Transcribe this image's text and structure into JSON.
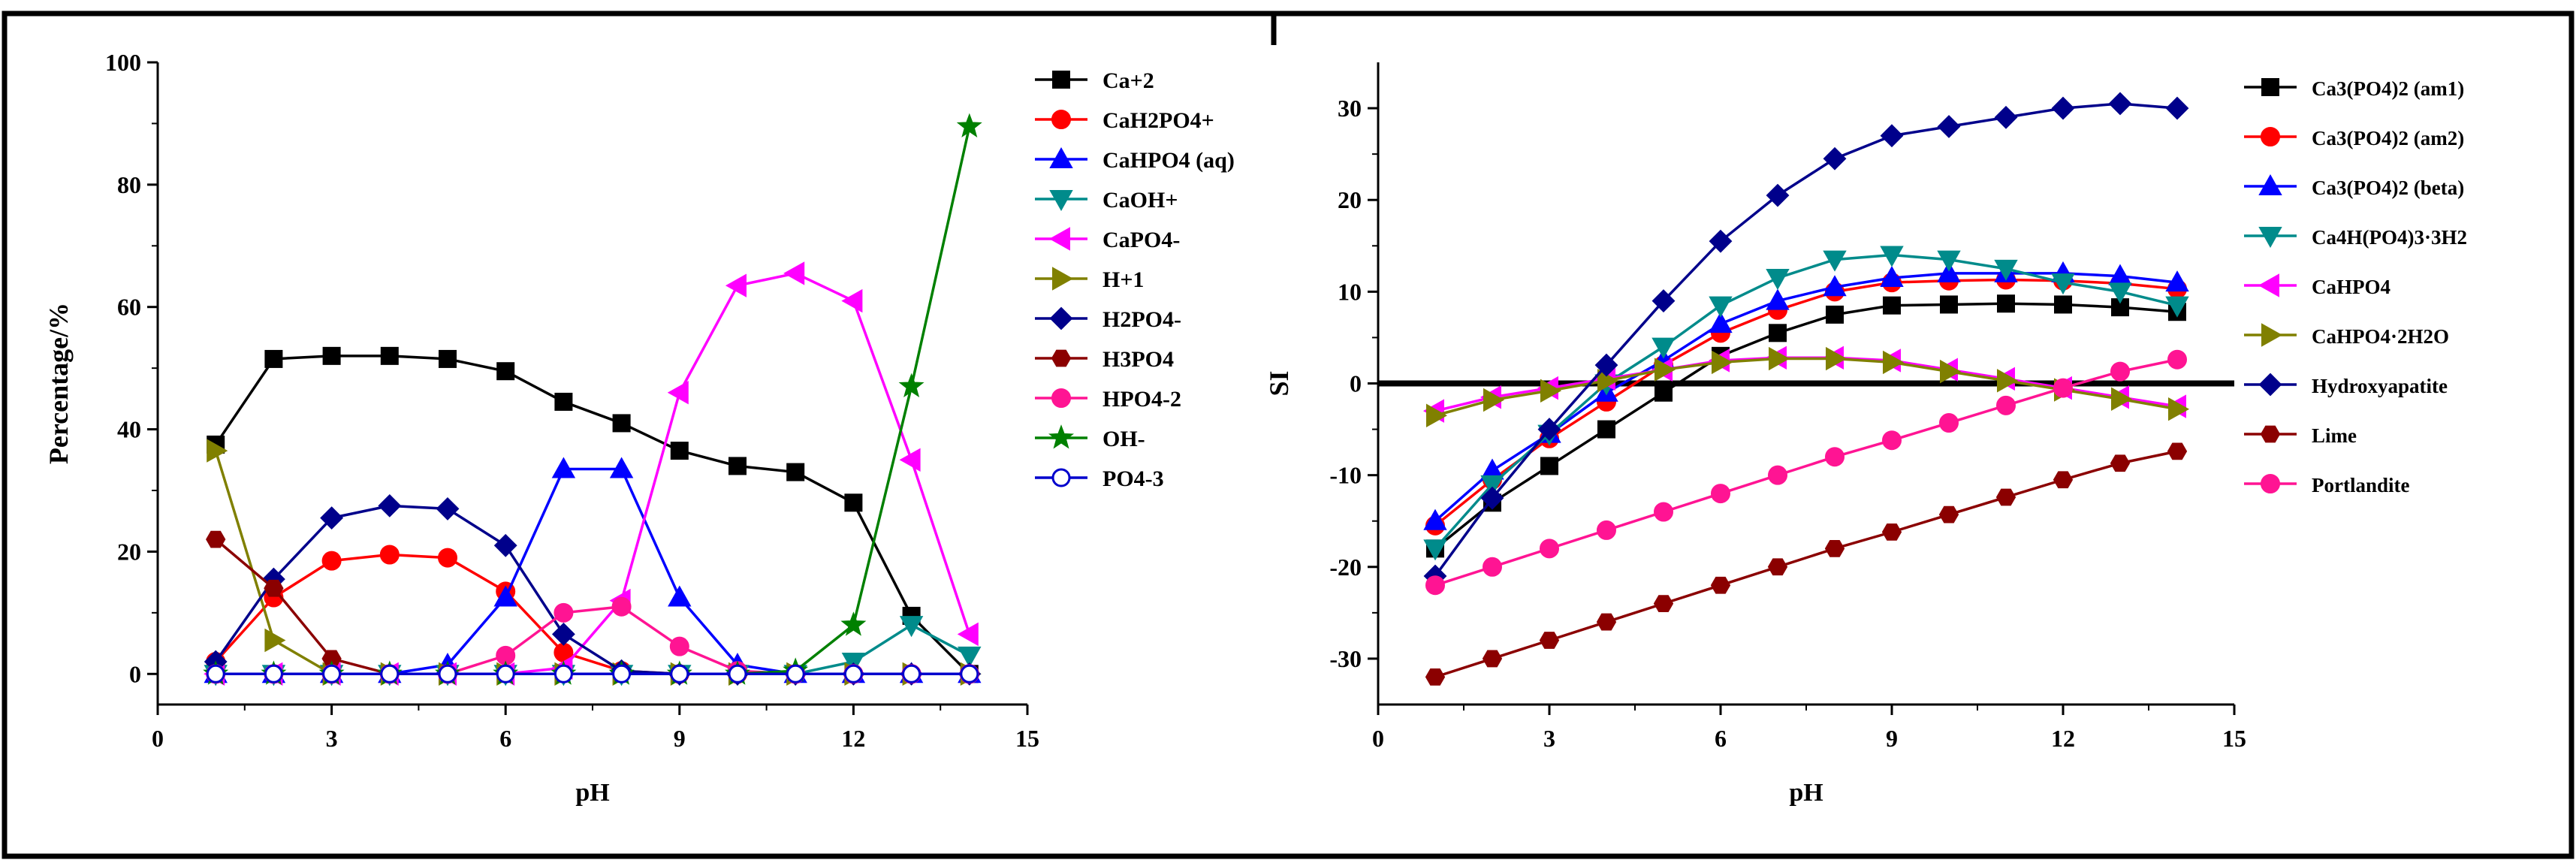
{
  "chart_data": [
    {
      "type": "line",
      "title": "",
      "xlabel": "pH",
      "ylabel": "Percentage/%",
      "xlim": [
        0,
        15
      ],
      "ylim": [
        -5,
        100
      ],
      "xticks": [
        0,
        3,
        6,
        9,
        12,
        15
      ],
      "yticks": [
        0,
        20,
        40,
        60,
        80,
        100
      ],
      "x": [
        1,
        2,
        3,
        4,
        5,
        6,
        7,
        8,
        9,
        10,
        11,
        12,
        13,
        14
      ],
      "legend_position": "right",
      "series": [
        {
          "name": "Ca+2",
          "color": "#000000",
          "marker": "square",
          "values": [
            37.5,
            51.5,
            52,
            52,
            51.5,
            49.5,
            44.5,
            41,
            36.5,
            34,
            33,
            28,
            9.5,
            0
          ]
        },
        {
          "name": "CaH2PO4+",
          "color": "#ff0000",
          "marker": "circle",
          "values": [
            2,
            12.5,
            18.5,
            19.5,
            19,
            13.5,
            3.5,
            0.5,
            0,
            0,
            0,
            0,
            0,
            0
          ]
        },
        {
          "name": "CaHPO4 (aq)",
          "color": "#0000ff",
          "marker": "triangle-up",
          "values": [
            0,
            0,
            0,
            0,
            1.5,
            12.5,
            33.5,
            33.5,
            12.5,
            1.5,
            0,
            0,
            0,
            0
          ]
        },
        {
          "name": "CaOH+",
          "color": "#008b8b",
          "marker": "triangle-down",
          "values": [
            0,
            0,
            0,
            0,
            0,
            0,
            0,
            0,
            0,
            0,
            0,
            2,
            8,
            3
          ]
        },
        {
          "name": "CaPO4-",
          "color": "#ff00ff",
          "marker": "triangle-left",
          "values": [
            0,
            0,
            0,
            0,
            0,
            0,
            1,
            12,
            46,
            63.5,
            65.5,
            61,
            35,
            6.5
          ]
        },
        {
          "name": "H+1",
          "color": "#808000",
          "marker": "triangle-right",
          "values": [
            36.5,
            5.5,
            0,
            0,
            0,
            0,
            0,
            0,
            0,
            0,
            0,
            0,
            0,
            0
          ]
        },
        {
          "name": "H2PO4-",
          "color": "#00008b",
          "marker": "diamond",
          "values": [
            2,
            15.5,
            25.5,
            27.5,
            27,
            21,
            6.5,
            0.5,
            0,
            0,
            0,
            0,
            0,
            0
          ]
        },
        {
          "name": "H3PO4",
          "color": "#8b0000",
          "marker": "hexagon",
          "values": [
            22,
            14,
            2.5,
            0,
            0,
            0,
            0,
            0,
            0,
            0,
            0,
            0,
            0,
            0
          ]
        },
        {
          "name": "HPO4-2",
          "color": "#ff1493",
          "marker": "circle",
          "values": [
            0,
            0,
            0,
            0,
            0,
            3,
            10,
            11,
            4.5,
            0.5,
            0,
            0,
            0,
            0
          ]
        },
        {
          "name": "OH-",
          "color": "#008000",
          "marker": "star",
          "values": [
            0,
            0,
            0,
            0,
            0,
            0,
            0,
            0,
            0,
            0,
            0.5,
            8,
            47,
            89.5
          ]
        },
        {
          "name": "PO4-3",
          "color": "#0000cd",
          "marker": "circle-open",
          "values": [
            0,
            0,
            0,
            0,
            0,
            0,
            0,
            0,
            0,
            0,
            0,
            0,
            0,
            0
          ]
        }
      ]
    },
    {
      "type": "line",
      "title": "",
      "xlabel": "pH",
      "ylabel": "SI",
      "xlim": [
        0,
        15
      ],
      "ylim": [
        -35,
        35
      ],
      "xticks": [
        0,
        3,
        6,
        9,
        12,
        15
      ],
      "yticks": [
        -30,
        -20,
        -10,
        0,
        10,
        20,
        30
      ],
      "zero_line": true,
      "x": [
        1,
        2,
        3,
        4,
        5,
        6,
        7,
        8,
        9,
        10,
        11,
        12,
        13,
        14
      ],
      "legend_position": "right",
      "series": [
        {
          "name": "Ca3(PO4)2 (am1)",
          "color": "#000000",
          "marker": "square",
          "values": [
            -18,
            -13,
            -9,
            -5,
            -1,
            3,
            5.5,
            7.5,
            8.5,
            8.6,
            8.7,
            8.6,
            8.3,
            7.8
          ]
        },
        {
          "name": "Ca3(PO4)2 (am2)",
          "color": "#ff0000",
          "marker": "circle",
          "values": [
            -15.5,
            -10.5,
            -6,
            -2,
            2,
            5.5,
            8,
            10,
            11,
            11.2,
            11.3,
            11.2,
            10.9,
            10.3
          ]
        },
        {
          "name": "Ca3(PO4)2 (beta)",
          "color": "#0000ff",
          "marker": "triangle-up",
          "values": [
            -15,
            -9.5,
            -5.5,
            -1,
            2.5,
            6.5,
            9,
            10.5,
            11.5,
            12,
            12,
            12,
            11.7,
            11
          ]
        },
        {
          "name": "Ca4H(PO4)3·3H2",
          "color": "#008b8b",
          "marker": "triangle-down",
          "values": [
            -18,
            -11,
            -5.5,
            0,
            4,
            8.5,
            11.5,
            13.5,
            14,
            13.5,
            12.5,
            11,
            10,
            8.5
          ]
        },
        {
          "name": "CaHPO4",
          "color": "#ff00ff",
          "marker": "triangle-left",
          "values": [
            -3,
            -1.5,
            -0.5,
            0.5,
            1.5,
            2.5,
            2.8,
            2.8,
            2.5,
            1.5,
            0.5,
            -0.5,
            -1.5,
            -2.5
          ]
        },
        {
          "name": "CaHPO4·2H2O",
          "color": "#808000",
          "marker": "triangle-right",
          "values": [
            -3.5,
            -1.8,
            -0.8,
            0.3,
            1.5,
            2.3,
            2.7,
            2.7,
            2.3,
            1.3,
            0.3,
            -0.7,
            -1.7,
            -2.8
          ]
        },
        {
          "name": "Hydroxyapatite",
          "color": "#00008b",
          "marker": "diamond",
          "values": [
            -21,
            -12.5,
            -5,
            2,
            9,
            15.5,
            20.5,
            24.5,
            27,
            28,
            29,
            30,
            30.5,
            30
          ]
        },
        {
          "name": "Lime",
          "color": "#8b0000",
          "marker": "hexagon",
          "values": [
            -32,
            -30,
            -28,
            -26,
            -24,
            -22,
            -20,
            -18,
            -16.2,
            -14.3,
            -12.4,
            -10.5,
            -8.7,
            -7.4
          ]
        },
        {
          "name": "Portlandite",
          "color": "#ff1493",
          "marker": "circle",
          "values": [
            -22,
            -20,
            -18,
            -16,
            -14,
            -12,
            -10,
            -8,
            -6.2,
            -4.3,
            -2.4,
            -0.5,
            1.3,
            2.6
          ]
        }
      ]
    }
  ]
}
